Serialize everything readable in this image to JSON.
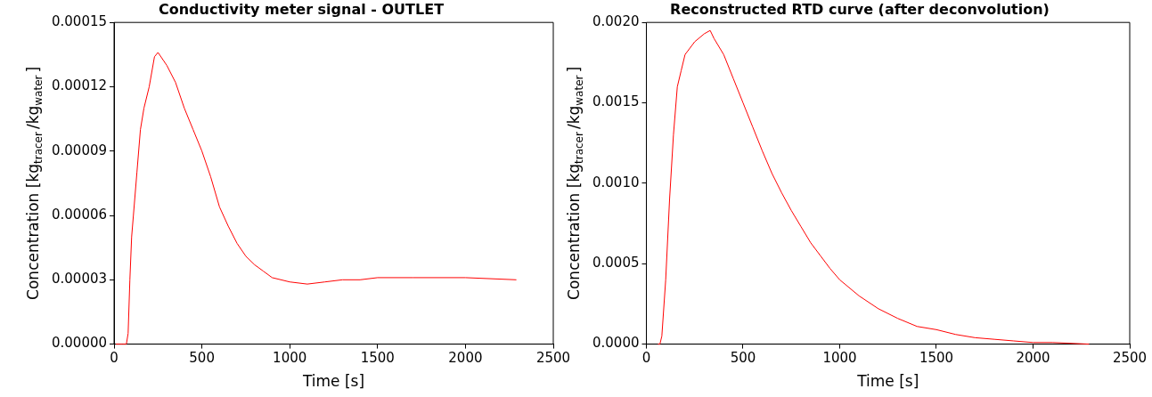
{
  "chart_data": [
    {
      "type": "line",
      "title": "Conductivity meter signal - OUTLET",
      "xlabel": "Time [s]",
      "ylabel": "Concentration [kg$_{tracer}$/kg$_{water}$]",
      "xlim": [
        0,
        2500
      ],
      "xticks": [
        0,
        500,
        1000,
        1500,
        2000,
        2500
      ],
      "ylim": [
        0,
        0.00015
      ],
      "yticks": [
        {
          "value": 0,
          "label": "0.00000"
        },
        {
          "value": 3e-05,
          "label": "0.00003"
        },
        {
          "value": 6e-05,
          "label": "0.00006"
        },
        {
          "value": 9e-05,
          "label": "0.00009"
        },
        {
          "value": 0.00012,
          "label": "0.00012"
        },
        {
          "value": 0.00015,
          "label": "0.00015"
        }
      ],
      "grid": false,
      "legend": false,
      "marker": "none",
      "line_style": "solid",
      "series": [
        {
          "color": "#ff0000",
          "x": [
            10,
            50,
            70,
            80,
            90,
            100,
            110,
            130,
            150,
            170,
            200,
            230,
            250,
            300,
            350,
            400,
            450,
            500,
            550,
            600,
            650,
            700,
            750,
            800,
            850,
            900,
            1000,
            1100,
            1200,
            1300,
            1400,
            1500,
            1700,
            2000,
            2290
          ],
          "values": [
            0,
            0,
            0,
            5e-06,
            3e-05,
            5e-05,
            6e-05,
            8e-05,
            0.0001,
            0.00011,
            0.00012,
            0.000134,
            0.000136,
            0.00013,
            0.000122,
            0.00011,
            0.0001,
            9e-05,
            7.8e-05,
            6.4e-05,
            5.5e-05,
            4.7e-05,
            4.1e-05,
            3.7e-05,
            3.4e-05,
            3.1e-05,
            2.9e-05,
            2.8e-05,
            2.9e-05,
            3e-05,
            3e-05,
            3.1e-05,
            3.1e-05,
            3.1e-05,
            3e-05
          ]
        }
      ]
    },
    {
      "type": "line",
      "title": "Reconstructed RTD curve (after deconvolution)",
      "xlabel": "Time [s]",
      "ylabel": "Concentration [kg$_{tracer}$/kg$_{water}$]",
      "xlim": [
        0,
        2500
      ],
      "xticks": [
        0,
        500,
        1000,
        1500,
        2000,
        2500
      ],
      "ylim": [
        0,
        0.002
      ],
      "yticks": [
        {
          "value": 0,
          "label": "0.0000"
        },
        {
          "value": 0.0005,
          "label": "0.0005"
        },
        {
          "value": 0.001,
          "label": "0.0010"
        },
        {
          "value": 0.0015,
          "label": "0.0015"
        },
        {
          "value": 0.002,
          "label": "0.0020"
        }
      ],
      "grid": false,
      "legend": false,
      "marker": "none",
      "line_style": "solid",
      "series": [
        {
          "color": "#ff0000",
          "x": [
            60,
            70,
            80,
            100,
            120,
            140,
            160,
            180,
            200,
            250,
            300,
            330,
            350,
            400,
            450,
            500,
            550,
            600,
            650,
            700,
            750,
            800,
            850,
            900,
            950,
            1000,
            1100,
            1200,
            1300,
            1400,
            1500,
            1600,
            1700,
            1800,
            1900,
            2000,
            2100,
            2290
          ],
          "values": [
            0,
            0,
            5e-05,
            0.0004,
            0.0009,
            0.0013,
            0.0016,
            0.0017,
            0.0018,
            0.00188,
            0.00193,
            0.00195,
            0.0019,
            0.0018,
            0.00165,
            0.0015,
            0.00135,
            0.0012,
            0.00106,
            0.00094,
            0.00083,
            0.00073,
            0.00063,
            0.00055,
            0.00047,
            0.0004,
            0.0003,
            0.00022,
            0.00016,
            0.00011,
            9e-05,
            6e-05,
            4e-05,
            3e-05,
            2e-05,
            1e-05,
            1e-05,
            0
          ]
        }
      ]
    }
  ]
}
